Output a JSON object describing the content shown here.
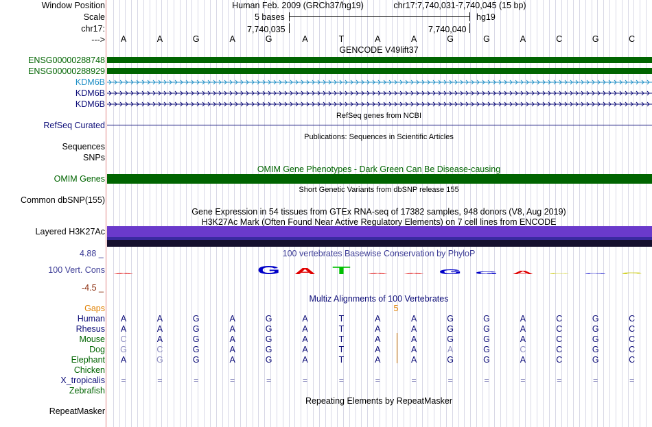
{
  "header": {
    "window_position_label": "Window Position",
    "scale_label": "Scale",
    "chrom_label": "chr17:",
    "arrow_label": "--->",
    "assembly": "Human Feb. 2009 (GRCh37/hg19)",
    "position": "chr17:7,740,031-7,740,045 (15 bp)",
    "scale_text": "5 bases",
    "db": "hg19",
    "tick1": "7,740,035",
    "tick2": "7,740,040"
  },
  "sequence": [
    "A",
    "A",
    "G",
    "A",
    "G",
    "A",
    "T",
    "A",
    "A",
    "G",
    "G",
    "A",
    "C",
    "G",
    "C"
  ],
  "gencode": {
    "title": "GENCODE V49lift37",
    "tracks": [
      {
        "label": "ENSG00000288748",
        "color": "#006400"
      },
      {
        "label": "ENSG00000288929",
        "color": "#006400"
      },
      {
        "label": "KDM6B",
        "color": "#1f8fc6"
      },
      {
        "label": "KDM6B",
        "color": "#0c0c78"
      },
      {
        "label": "KDM6B",
        "color": "#0c0c78"
      }
    ]
  },
  "refseq": {
    "title": "RefSeq genes from NCBI",
    "label": "RefSeq Curated"
  },
  "publications": {
    "title": "Publications: Sequences in Scientific Articles",
    "labels": [
      "Sequences",
      "SNPs"
    ]
  },
  "omim": {
    "title": "OMIM Gene Phenotypes - Dark Green Can Be Disease-causing",
    "label": "OMIM Genes"
  },
  "dbsnp": {
    "title": "Short Genetic Variants from dbSNP release 155",
    "label": "Common dbSNP(155)"
  },
  "gtex": {
    "title": "Gene Expression in 54 tissues from GTEx RNA-seq of 17382 samples, 948 donors (V8, Aug 2019)"
  },
  "h3k27ac": {
    "title": "H3K27Ac Mark (Often Found Near Active Regulatory Elements) on 7 cell lines from ENCODE",
    "label": "Layered H3K27Ac"
  },
  "conservation": {
    "title": "100 vertebrates Basewise Conservation by PhyloP",
    "label": "100 Vert. Cons",
    "ymax": "4.88 _",
    "ymin": "-4.5 _"
  },
  "multiz": {
    "title": "Multiz Alignments of 100 Vertebrates",
    "gaps_label": "Gaps",
    "gap_count": "5",
    "species": [
      {
        "name": "Human",
        "color": "#0c0c78",
        "bases": [
          "A",
          "A",
          "G",
          "A",
          "G",
          "A",
          "T",
          "A",
          "A",
          "G",
          "G",
          "A",
          "C",
          "G",
          "C"
        ]
      },
      {
        "name": "Rhesus",
        "color": "#0c0c78",
        "bases": [
          "A",
          "A",
          "G",
          "A",
          "G",
          "A",
          "T",
          "A",
          "A",
          "G",
          "G",
          "A",
          "C",
          "G",
          "C"
        ]
      },
      {
        "name": "Mouse",
        "color": "#006400",
        "bases": [
          "C",
          "A",
          "G",
          "A",
          "G",
          "A",
          "T",
          "A",
          "A",
          "G",
          "G",
          "A",
          "C",
          "G",
          "C"
        ]
      },
      {
        "name": "Dog",
        "color": "#006400",
        "bases": [
          "G",
          "C",
          "G",
          "A",
          "G",
          "A",
          "T",
          "A",
          "A",
          "A",
          "G",
          "C",
          "C",
          "G",
          "C"
        ]
      },
      {
        "name": "Elephant",
        "color": "#006400",
        "bases": [
          "A",
          "G",
          "G",
          "A",
          "G",
          "A",
          "T",
          "A",
          "A",
          "G",
          "G",
          "A",
          "C",
          "G",
          "C"
        ]
      },
      {
        "name": "Chicken",
        "color": "#006400",
        "bases": []
      },
      {
        "name": "X_tropicalis",
        "color": "#0c0c78",
        "bases": [
          "=",
          "=",
          "=",
          "=",
          "=",
          "=",
          "=",
          "=",
          "=",
          "=",
          "=",
          "=",
          "=",
          "=",
          "="
        ]
      },
      {
        "name": "Zebrafish",
        "color": "#006400",
        "bases": []
      }
    ]
  },
  "repeatmasker": {
    "title": "Repeating Elements by RepeatMasker",
    "label": "RepeatMasker"
  },
  "colors": {
    "gencode_bar": "#006400",
    "omim_bar": "#006400",
    "refseq": "#0c0c78",
    "h3k27ac_top": "#7b3fd4",
    "h3k27ac_mid": "#3a2aa0",
    "h3k27ac_bottom": "#1a1040",
    "gaps": "#e08000",
    "cons_label": "#3c3c96"
  }
}
